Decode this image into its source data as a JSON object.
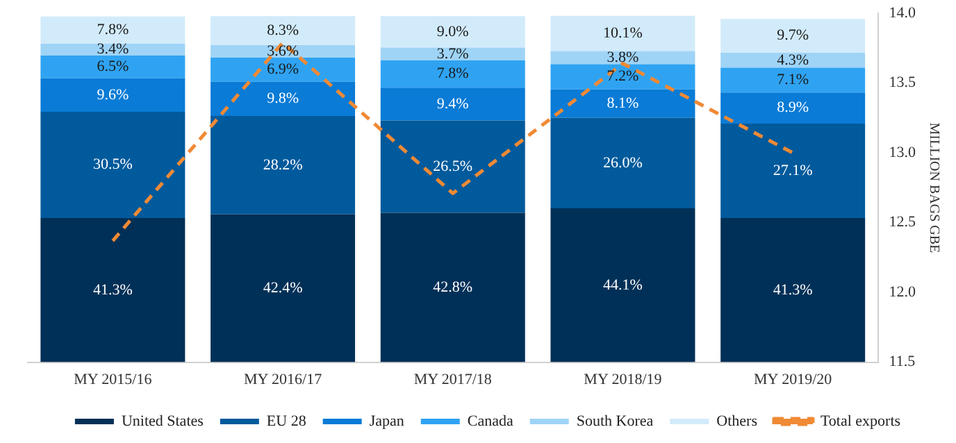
{
  "chart_data": {
    "type": "bar",
    "stacked": true,
    "y2label": "MILLION BAGS GBE",
    "categories": [
      "MY 2015/16",
      "MY 2016/17",
      "MY 2017/18",
      "MY 2018/19",
      "MY 2019/20"
    ],
    "ylim": [
      0,
      100
    ],
    "y2lim": [
      11.5,
      14.0
    ],
    "y2ticks": [
      {
        "value": 11.5,
        "label": "11.5"
      },
      {
        "value": 12.0,
        "label": "12.0"
      },
      {
        "value": 12.5,
        "label": "12.5"
      },
      {
        "value": 13.0,
        "label": "13.0"
      },
      {
        "value": 13.5,
        "label": "13.5"
      },
      {
        "value": 14.0,
        "label": "14.0"
      }
    ],
    "grid": false,
    "legend": "bottom",
    "series": [
      {
        "name": "United States",
        "color": "#003057",
        "values": [
          41.3,
          42.4,
          42.8,
          44.1,
          41.3
        ],
        "value_labels": [
          "41.3%",
          "42.4%",
          "42.8%",
          "44.1%",
          "41.3%"
        ]
      },
      {
        "name": "EU 28",
        "color": "#005a9c",
        "values": [
          30.5,
          28.2,
          26.5,
          26.0,
          27.1
        ],
        "value_labels": [
          "30.5%",
          "28.2%",
          "26.5%",
          "26.0%",
          "27.1%"
        ]
      },
      {
        "name": "Japan",
        "color": "#0a7bd6",
        "values": [
          9.6,
          9.8,
          9.4,
          8.1,
          8.9
        ],
        "value_labels": [
          "9.6%",
          "9.8%",
          "9.4%",
          "8.1%",
          "8.9%"
        ]
      },
      {
        "name": "Canada",
        "color": "#2fa3f2",
        "values": [
          6.5,
          6.9,
          7.8,
          7.2,
          7.1
        ],
        "value_labels": [
          "6.5%",
          "6.9%",
          "7.8%",
          "7.2%",
          "7.1%"
        ]
      },
      {
        "name": "South Korea",
        "color": "#9fd4f7",
        "values": [
          3.4,
          3.6,
          3.7,
          3.8,
          4.3
        ],
        "value_labels": [
          "3.4%",
          "3.6%",
          "3.7%",
          "3.8%",
          "4.3%"
        ]
      },
      {
        "name": "Others",
        "color": "#d2ebfb",
        "values": [
          7.8,
          8.3,
          9.0,
          10.1,
          9.7
        ],
        "value_labels": [
          "7.8%",
          "8.3%",
          "9.0%",
          "10.1%",
          "9.7%"
        ]
      },
      {
        "name": "Total exports",
        "type": "line",
        "axis": "y2",
        "color": "#f08a35",
        "line_style": "dashed",
        "marker": "none",
        "values": [
          12.37,
          13.79,
          12.71,
          13.64,
          13.0
        ]
      }
    ]
  }
}
